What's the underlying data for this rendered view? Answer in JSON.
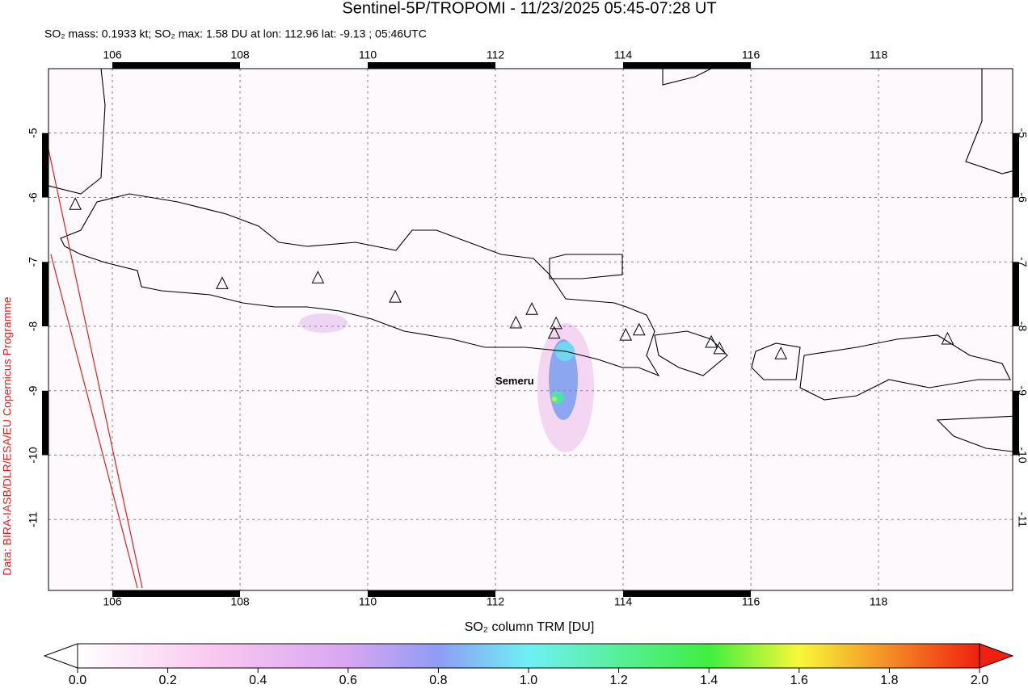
{
  "chart_data": {
    "type": "map",
    "title": "Sentinel-5P/TROPOMI - 11/23/2025 05:45-07:28 UT",
    "subtitle": "SO₂ mass: 0.1933 kt; SO₂ max: 1.58 DU at lon: 112.96 lat: -9.13 ; 05:46UTC",
    "credit": "Data: BIRA-IASB/DLR/ESA/EU Copernicus Programme",
    "xlim": [
      105,
      120.1
    ],
    "ylim": [
      -12.1,
      -4
    ],
    "xticks": [
      106,
      108,
      110,
      112,
      114,
      116,
      118
    ],
    "yticks": [
      -5,
      -6,
      -7,
      -8,
      -9,
      -10,
      -11
    ],
    "grid": true,
    "volcanoes": {
      "lon": [
        105.42,
        107.72,
        109.22,
        110.43,
        112.32,
        112.57,
        112.95,
        112.92,
        114.04,
        114.25,
        115.38,
        115.51,
        116.47,
        119.08
      ],
      "lat": [
        -6.11,
        -7.34,
        -7.25,
        -7.55,
        -7.95,
        -7.74,
        -7.96,
        -8.11,
        -8.14,
        -8.06,
        -8.25,
        -8.35,
        -8.43,
        -8.2
      ]
    },
    "annotation": {
      "text": "Semeru",
      "lon": 112.0,
      "lat": -8.86
    },
    "colorbar": {
      "label": "SO₂ column TRM [DU]",
      "lim": [
        0,
        2
      ],
      "ticks": [
        {
          "value": 0,
          "label": "0.0"
        },
        0.2,
        0.4,
        0.6,
        0.8,
        {
          "value": 1,
          "label": "1.0"
        },
        1.2,
        1.4,
        1.6,
        1.8,
        {
          "value": 2,
          "label": "2.0"
        }
      ]
    }
  }
}
